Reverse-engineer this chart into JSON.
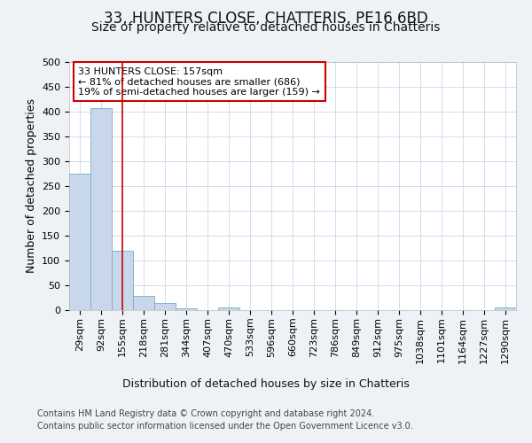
{
  "title": "33, HUNTERS CLOSE, CHATTERIS, PE16 6BD",
  "subtitle": "Size of property relative to detached houses in Chatteris",
  "xlabel": "Distribution of detached houses by size in Chatteris",
  "ylabel": "Number of detached properties",
  "bin_labels": [
    "29sqm",
    "92sqm",
    "155sqm",
    "218sqm",
    "281sqm",
    "344sqm",
    "407sqm",
    "470sqm",
    "533sqm",
    "596sqm",
    "660sqm",
    "723sqm",
    "786sqm",
    "849sqm",
    "912sqm",
    "975sqm",
    "1038sqm",
    "1101sqm",
    "1164sqm",
    "1227sqm",
    "1290sqm"
  ],
  "bar_heights": [
    275,
    407,
    120,
    28,
    15,
    4,
    0,
    5,
    0,
    0,
    0,
    0,
    0,
    0,
    0,
    0,
    0,
    0,
    0,
    0,
    5
  ],
  "bar_color": "#c8d8ea",
  "bar_edgecolor": "#7aaac8",
  "vline_x_index": 2,
  "vline_color": "#cc0000",
  "annotation_line1": "33 HUNTERS CLOSE: 157sqm",
  "annotation_line2": "← 81% of detached houses are smaller (686)",
  "annotation_line3": "19% of semi-detached houses are larger (159) →",
  "annotation_box_edgecolor": "#cc0000",
  "ylim": [
    0,
    500
  ],
  "yticks": [
    0,
    50,
    100,
    150,
    200,
    250,
    300,
    350,
    400,
    450,
    500
  ],
  "footer_line1": "Contains HM Land Registry data © Crown copyright and database right 2024.",
  "footer_line2": "Contains public sector information licensed under the Open Government Licence v3.0.",
  "background_color": "#eef2f7",
  "plot_bg_color": "#ffffff",
  "grid_color": "#c8d8ea",
  "title_fontsize": 12,
  "subtitle_fontsize": 10,
  "tick_fontsize": 8,
  "ylabel_fontsize": 9,
  "xlabel_fontsize": 9,
  "annotation_fontsize": 8,
  "footer_fontsize": 7
}
